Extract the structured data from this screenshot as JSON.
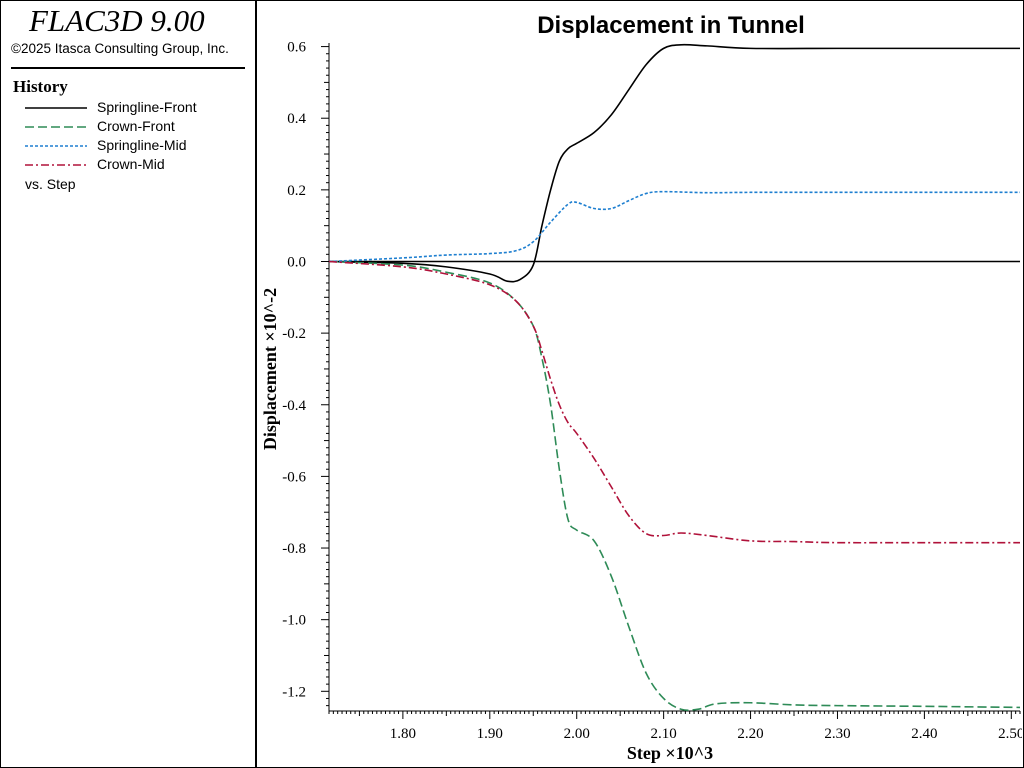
{
  "app": {
    "title": "FLAC3D 9.00",
    "copyright": "©2025 Itasca Consulting Group, Inc."
  },
  "legend": {
    "heading": "History",
    "vs_label": "vs. Step"
  },
  "chart_data": {
    "type": "line",
    "title": "Displacement in Tunnel",
    "xlabel": "Step ×10^3",
    "ylabel": "Displacement ×10^-2",
    "xlim": [
      1.715,
      2.51
    ],
    "ylim": [
      -1.255,
      0.61
    ],
    "xticks": [
      "1.80",
      "1.90",
      "2.00",
      "2.10",
      "2.20",
      "2.30",
      "2.40",
      "2.50"
    ],
    "xtick_values": [
      1.8,
      1.9,
      2.0,
      2.1,
      2.2,
      2.3,
      2.4,
      2.5
    ],
    "yticks": [
      "0.6",
      "0.4",
      "0.2",
      "0.0",
      "-0.2",
      "-0.4",
      "-0.6",
      "-0.8",
      "-1.0",
      "-1.2"
    ],
    "ytick_values": [
      0.6,
      0.4,
      0.2,
      0.0,
      -0.2,
      -0.4,
      -0.6,
      -0.8,
      -1.0,
      -1.2
    ],
    "zero_line": true,
    "grid": false,
    "legend_position": "left-panel",
    "series": [
      {
        "name": "Springline-Front",
        "color": "#000000",
        "dash": "solid",
        "x": [
          1.715,
          1.8,
          1.85,
          1.9,
          1.92,
          1.935,
          1.95,
          1.96,
          1.97,
          1.98,
          1.99,
          2.0,
          2.02,
          2.04,
          2.06,
          2.08,
          2.1,
          2.12,
          2.15,
          2.2,
          2.3,
          2.4,
          2.51
        ],
        "y": [
          0.0,
          -0.005,
          -0.015,
          -0.035,
          -0.055,
          -0.05,
          -0.01,
          0.1,
          0.2,
          0.28,
          0.315,
          0.33,
          0.36,
          0.41,
          0.48,
          0.55,
          0.595,
          0.605,
          0.602,
          0.595,
          0.595,
          0.595,
          0.595
        ]
      },
      {
        "name": "Crown-Front",
        "color": "#2e8b57",
        "dash": "long-dash",
        "x": [
          1.715,
          1.8,
          1.85,
          1.9,
          1.93,
          1.95,
          1.96,
          1.97,
          1.98,
          1.99,
          2.0,
          2.02,
          2.04,
          2.06,
          2.08,
          2.1,
          2.12,
          2.14,
          2.16,
          2.2,
          2.25,
          2.3,
          2.4,
          2.51
        ],
        "y": [
          0.0,
          -0.01,
          -0.03,
          -0.06,
          -0.11,
          -0.18,
          -0.27,
          -0.4,
          -0.58,
          -0.72,
          -0.75,
          -0.78,
          -0.88,
          -1.02,
          -1.15,
          -1.22,
          -1.25,
          -1.25,
          -1.235,
          -1.232,
          -1.238,
          -1.24,
          -1.242,
          -1.245
        ]
      },
      {
        "name": "Springline-Mid",
        "color": "#1e7fd0",
        "dash": "short-dash",
        "x": [
          1.715,
          1.8,
          1.85,
          1.9,
          1.93,
          1.95,
          1.97,
          1.99,
          2.0,
          2.02,
          2.04,
          2.06,
          2.08,
          2.1,
          2.15,
          2.2,
          2.3,
          2.4,
          2.51
        ],
        "y": [
          0.0,
          0.01,
          0.018,
          0.022,
          0.03,
          0.055,
          0.11,
          0.16,
          0.165,
          0.148,
          0.148,
          0.17,
          0.19,
          0.195,
          0.192,
          0.193,
          0.193,
          0.193,
          0.193
        ]
      },
      {
        "name": "Crown-Mid",
        "color": "#b0123a",
        "dash": "dash-dot",
        "x": [
          1.715,
          1.8,
          1.85,
          1.9,
          1.93,
          1.95,
          1.96,
          1.97,
          1.98,
          1.99,
          2.0,
          2.02,
          2.04,
          2.06,
          2.08,
          2.1,
          2.12,
          2.15,
          2.2,
          2.25,
          2.3,
          2.4,
          2.51
        ],
        "y": [
          0.0,
          -0.015,
          -0.035,
          -0.065,
          -0.11,
          -0.18,
          -0.25,
          -0.33,
          -0.4,
          -0.45,
          -0.48,
          -0.55,
          -0.63,
          -0.71,
          -0.76,
          -0.765,
          -0.758,
          -0.765,
          -0.78,
          -0.782,
          -0.785,
          -0.785,
          -0.785
        ]
      }
    ]
  }
}
